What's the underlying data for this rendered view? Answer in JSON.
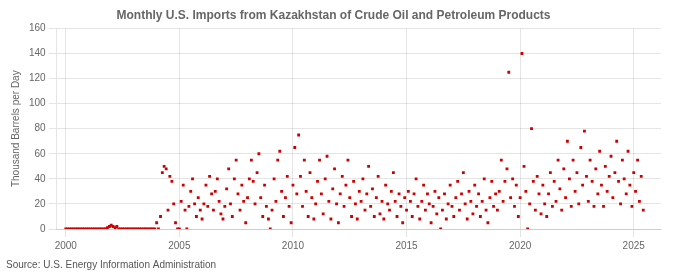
{
  "chart_data": {
    "type": "scatter",
    "title": "Monthly U.S. Imports from Kazakhstan of Crude Oil and Petroleum Products",
    "ylabel": "Thousand Barrels per Day",
    "annotation": "Source: U.S. Energy Information Administration",
    "color": "#cc0000",
    "marker": "square",
    "grid": true,
    "xlim": [
      1999.6,
      2026.2
    ],
    "ylim": [
      0,
      160
    ],
    "xticks": [
      2000,
      2005,
      2010,
      2015,
      2020,
      2025
    ],
    "yticks": [
      0,
      20,
      40,
      60,
      80,
      100,
      120,
      140,
      160
    ],
    "x": [
      2000.0,
      2000.08,
      2000.17,
      2000.25,
      2000.33,
      2000.42,
      2000.5,
      2000.58,
      2000.67,
      2000.75,
      2000.83,
      2000.92,
      2001.0,
      2001.08,
      2001.17,
      2001.25,
      2001.33,
      2001.42,
      2001.5,
      2001.58,
      2001.67,
      2001.75,
      2001.83,
      2001.92,
      2002.0,
      2002.08,
      2002.17,
      2002.25,
      2002.33,
      2002.42,
      2002.5,
      2002.58,
      2002.67,
      2002.75,
      2002.83,
      2002.92,
      2003.0,
      2003.08,
      2003.17,
      2003.25,
      2003.33,
      2003.42,
      2003.5,
      2003.58,
      2003.67,
      2003.75,
      2003.83,
      2003.92,
      2004.0,
      2004.08,
      2004.17,
      2004.25,
      2004.33,
      2004.42,
      2004.5,
      2004.58,
      2004.67,
      2004.75,
      2004.83,
      2004.92,
      2005.0,
      2005.08,
      2005.17,
      2005.25,
      2005.33,
      2005.42,
      2005.5,
      2005.58,
      2005.67,
      2005.75,
      2005.83,
      2005.92,
      2006.0,
      2006.08,
      2006.17,
      2006.25,
      2006.33,
      2006.42,
      2006.5,
      2006.58,
      2006.67,
      2006.75,
      2006.83,
      2006.92,
      2007.0,
      2007.08,
      2007.17,
      2007.25,
      2007.33,
      2007.42,
      2007.5,
      2007.58,
      2007.67,
      2007.75,
      2007.83,
      2007.92,
      2008.0,
      2008.08,
      2008.17,
      2008.25,
      2008.33,
      2008.42,
      2008.5,
      2008.58,
      2008.67,
      2008.75,
      2008.83,
      2008.92,
      2009.0,
      2009.08,
      2009.17,
      2009.25,
      2009.33,
      2009.42,
      2009.5,
      2009.58,
      2009.67,
      2009.75,
      2009.83,
      2009.92,
      2010.0,
      2010.08,
      2010.17,
      2010.25,
      2010.33,
      2010.42,
      2010.5,
      2010.58,
      2010.67,
      2010.75,
      2010.83,
      2010.92,
      2011.0,
      2011.08,
      2011.17,
      2011.25,
      2011.33,
      2011.42,
      2011.5,
      2011.58,
      2011.67,
      2011.75,
      2011.83,
      2011.92,
      2012.0,
      2012.08,
      2012.17,
      2012.25,
      2012.33,
      2012.42,
      2012.5,
      2012.58,
      2012.67,
      2012.75,
      2012.83,
      2012.92,
      2013.0,
      2013.08,
      2013.17,
      2013.25,
      2013.33,
      2013.42,
      2013.5,
      2013.58,
      2013.67,
      2013.75,
      2013.83,
      2013.92,
      2014.0,
      2014.08,
      2014.17,
      2014.25,
      2014.33,
      2014.42,
      2014.5,
      2014.58,
      2014.67,
      2014.75,
      2014.83,
      2014.92,
      2015.0,
      2015.08,
      2015.17,
      2015.25,
      2015.33,
      2015.42,
      2015.5,
      2015.58,
      2015.67,
      2015.75,
      2015.83,
      2015.92,
      2016.0,
      2016.08,
      2016.17,
      2016.25,
      2016.33,
      2016.42,
      2016.5,
      2016.58,
      2016.67,
      2016.75,
      2016.83,
      2016.92,
      2017.0,
      2017.08,
      2017.17,
      2017.25,
      2017.33,
      2017.42,
      2017.5,
      2017.58,
      2017.67,
      2017.75,
      2017.83,
      2017.92,
      2018.0,
      2018.08,
      2018.17,
      2018.25,
      2018.33,
      2018.42,
      2018.5,
      2018.58,
      2018.67,
      2018.75,
      2018.83,
      2018.92,
      2019.0,
      2019.08,
      2019.17,
      2019.25,
      2019.33,
      2019.42,
      2019.5,
      2019.58,
      2019.67,
      2019.75,
      2019.83,
      2019.92,
      2020.0,
      2020.08,
      2020.17,
      2020.25,
      2020.33,
      2020.42,
      2020.5,
      2020.58,
      2020.67,
      2020.75,
      2020.83,
      2020.92,
      2021.0,
      2021.08,
      2021.17,
      2021.25,
      2021.33,
      2021.42,
      2021.5,
      2021.58,
      2021.67,
      2021.75,
      2021.83,
      2021.92,
      2022.0,
      2022.08,
      2022.17,
      2022.25,
      2022.33,
      2022.42,
      2022.5,
      2022.58,
      2022.67,
      2022.75,
      2022.83,
      2022.92,
      2023.0,
      2023.08,
      2023.17,
      2023.25,
      2023.33,
      2023.42,
      2023.5,
      2023.58,
      2023.67,
      2023.75,
      2023.83,
      2023.92,
      2024.0,
      2024.08,
      2024.17,
      2024.25,
      2024.33,
      2024.42,
      2024.5,
      2024.58,
      2024.67,
      2024.75,
      2024.83,
      2024.92,
      2025.0,
      2025.08,
      2025.17,
      2025.25,
      2025.33,
      2025.42
    ],
    "values": [
      0,
      0,
      0,
      0,
      0,
      0,
      0,
      0,
      0,
      0,
      0,
      0,
      0,
      0,
      0,
      0,
      0,
      0,
      0,
      0,
      0,
      0,
      1,
      2,
      3,
      2,
      1,
      2,
      0,
      0,
      0,
      0,
      0,
      0,
      0,
      0,
      0,
      0,
      0,
      0,
      0,
      0,
      0,
      0,
      0,
      0,
      0,
      0,
      5,
      0,
      10,
      45,
      50,
      48,
      15,
      42,
      38,
      20,
      5,
      0,
      0,
      22,
      35,
      15,
      0,
      18,
      30,
      40,
      20,
      10,
      25,
      15,
      8,
      20,
      35,
      18,
      42,
      28,
      15,
      30,
      40,
      22,
      12,
      8,
      18,
      32,
      48,
      20,
      10,
      40,
      55,
      28,
      15,
      35,
      22,
      5,
      25,
      40,
      55,
      38,
      20,
      45,
      60,
      25,
      10,
      35,
      18,
      8,
      0,
      15,
      40,
      22,
      55,
      62,
      30,
      10,
      25,
      42,
      18,
      5,
      35,
      65,
      28,
      75,
      42,
      18,
      55,
      30,
      10,
      45,
      25,
      8,
      20,
      38,
      55,
      28,
      12,
      40,
      58,
      22,
      8,
      32,
      48,
      20,
      5,
      28,
      42,
      18,
      35,
      55,
      25,
      10,
      38,
      20,
      8,
      30,
      22,
      40,
      15,
      28,
      50,
      18,
      32,
      10,
      25,
      42,
      12,
      22,
      8,
      35,
      20,
      15,
      30,
      45,
      22,
      10,
      28,
      18,
      5,
      25,
      15,
      30,
      22,
      10,
      28,
      40,
      18,
      8,
      22,
      35,
      15,
      28,
      20,
      5,
      18,
      30,
      12,
      25,
      0,
      15,
      28,
      8,
      20,
      35,
      18,
      10,
      25,
      38,
      15,
      28,
      45,
      20,
      8,
      30,
      22,
      12,
      35,
      18,
      28,
      10,
      22,
      40,
      15,
      5,
      25,
      38,
      18,
      28,
      15,
      30,
      55,
      22,
      38,
      48,
      125,
      25,
      40,
      18,
      35,
      10,
      25,
      140,
      50,
      30,
      0,
      20,
      80,
      38,
      15,
      42,
      28,
      12,
      35,
      20,
      10,
      28,
      45,
      18,
      38,
      22,
      55,
      32,
      15,
      48,
      25,
      70,
      40,
      18,
      55,
      30,
      45,
      20,
      65,
      35,
      78,
      42,
      22,
      55,
      38,
      18,
      48,
      28,
      62,
      35,
      18,
      50,
      30,
      42,
      58,
      25,
      45,
      70,
      38,
      20,
      55,
      40,
      28,
      62,
      35,
      18,
      45,
      30,
      55,
      22,
      42,
      15
    ]
  }
}
